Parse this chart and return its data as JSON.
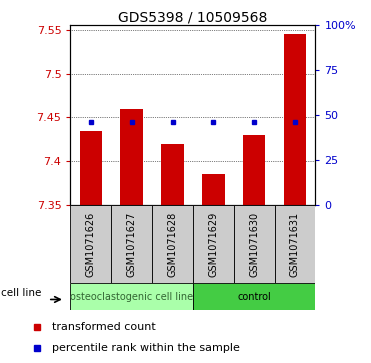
{
  "title": "GDS5398 / 10509568",
  "samples": [
    "GSM1071626",
    "GSM1071627",
    "GSM1071628",
    "GSM1071629",
    "GSM1071630",
    "GSM1071631"
  ],
  "red_values": [
    7.435,
    7.46,
    7.42,
    7.385,
    7.43,
    7.545
  ],
  "blue_values": [
    46.5,
    46.5,
    46.0,
    46.0,
    46.0,
    46.0
  ],
  "ylim": [
    7.35,
    7.555
  ],
  "yticks_left": [
    7.35,
    7.4,
    7.45,
    7.5,
    7.55
  ],
  "yticks_right": [
    0,
    25,
    50,
    75,
    100
  ],
  "ytick_labels_right": [
    "0",
    "25",
    "50",
    "75",
    "100%"
  ],
  "groups": [
    {
      "label": "osteoclastogenic cell line",
      "start": 0,
      "end": 3,
      "color": "#aaffaa",
      "text_color": "#336633"
    },
    {
      "label": "control",
      "start": 3,
      "end": 6,
      "color": "#44cc44",
      "text_color": "#000000"
    }
  ],
  "bar_color": "#CC0000",
  "dot_color": "#0000CC",
  "bar_width": 0.55,
  "cell_line_label": "cell line",
  "legend": [
    {
      "color": "#CC0000",
      "label": "transformed count"
    },
    {
      "color": "#0000CC",
      "label": "percentile rank within the sample"
    }
  ],
  "label_box_color": "#cccccc",
  "grid_color": "#000000",
  "title_fontsize": 10,
  "tick_fontsize": 8,
  "sample_fontsize": 7,
  "group_fontsize": 7,
  "legend_fontsize": 8
}
